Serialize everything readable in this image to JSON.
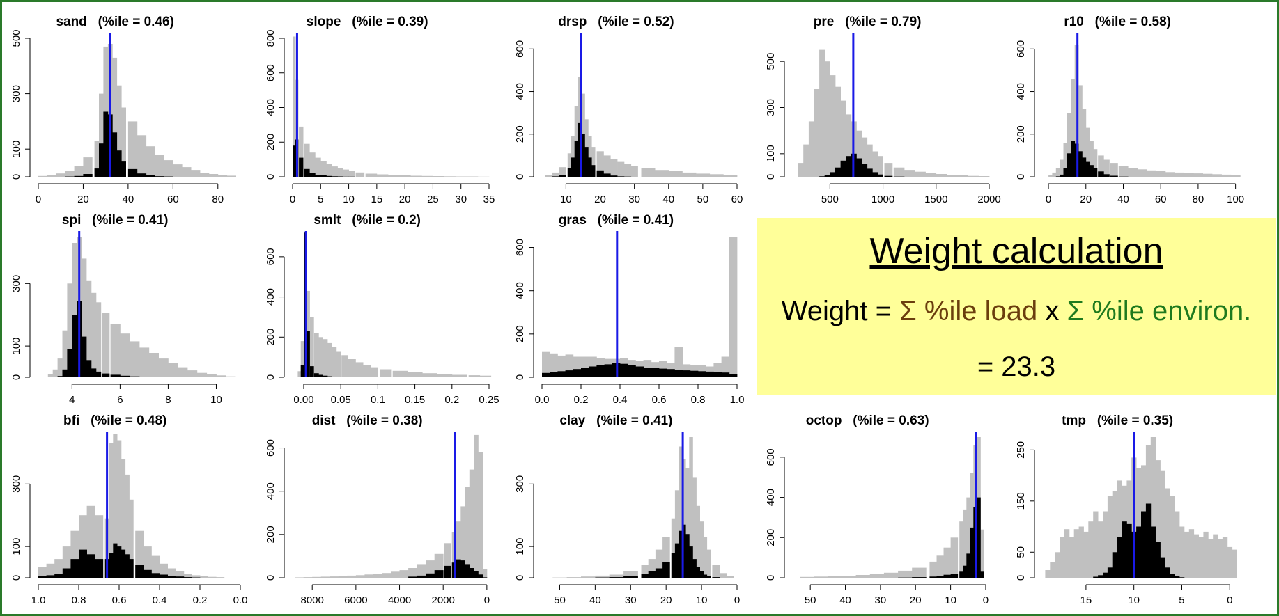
{
  "panel": {
    "title": "Weight calculation",
    "formula_prefix": "Weight = ",
    "formula_load": "Σ %ile load",
    "formula_mid": " x ",
    "formula_env": "Σ %ile environ.",
    "result": "= 23.3",
    "colors": {
      "background": "#ffff99",
      "load": "#6b3e0e",
      "environ": "#1e7a1e"
    }
  },
  "colors": {
    "background_hist": "#c0c0c0",
    "selected_hist": "#000000",
    "marker": "#1a1ae6",
    "frame": "#2a7a2a"
  },
  "chart_data": [
    {
      "type": "bar",
      "title": "sand   (%ile = 0.46)",
      "xlim": [
        0,
        90
      ],
      "ylim": [
        0,
        500
      ],
      "xticks": [
        0,
        20,
        40,
        60,
        80
      ],
      "yticks": [
        0,
        100,
        300,
        500
      ],
      "marker": 32,
      "x": [
        2,
        6,
        10,
        14,
        18,
        22,
        26,
        28,
        30,
        32,
        34,
        36,
        38,
        42,
        46,
        50,
        54,
        58,
        62,
        66,
        70,
        74,
        78,
        82,
        86
      ],
      "bg": [
        3,
        6,
        12,
        22,
        40,
        70,
        130,
        300,
        470,
        480,
        430,
        330,
        250,
        200,
        150,
        110,
        80,
        60,
        45,
        35,
        25,
        15,
        10,
        6,
        4
      ],
      "fg": [
        0,
        0,
        0,
        1,
        3,
        10,
        30,
        120,
        235,
        225,
        160,
        95,
        55,
        28,
        12,
        5,
        2,
        1,
        0,
        0,
        0,
        0,
        0,
        0,
        0
      ]
    },
    {
      "type": "bar",
      "title": "slope   (%ile = 0.39)",
      "xlim": [
        0,
        35
      ],
      "ylim": [
        0,
        800
      ],
      "xticks": [
        0,
        5,
        10,
        15,
        20,
        25,
        30,
        35
      ],
      "yticks": [
        0,
        200,
        400,
        600,
        800
      ],
      "marker": 0.8,
      "x": [
        0.25,
        0.75,
        1.5,
        2.5,
        3.5,
        4.5,
        5.5,
        6.5,
        7.5,
        8.5,
        9.5,
        10.5,
        12,
        14,
        16,
        18,
        20,
        22,
        24,
        26,
        28,
        30,
        32,
        34
      ],
      "bg": [
        810,
        560,
        290,
        190,
        140,
        110,
        90,
        75,
        60,
        50,
        42,
        35,
        25,
        18,
        14,
        10,
        8,
        6,
        5,
        4,
        3,
        2,
        2,
        1
      ],
      "fg": [
        180,
        215,
        110,
        45,
        20,
        12,
        8,
        5,
        3,
        2,
        1,
        1,
        0,
        0,
        0,
        0,
        0,
        0,
        0,
        0,
        0,
        0,
        0,
        0
      ]
    },
    {
      "type": "bar",
      "title": "drsp   (%ile = 0.52)",
      "xlim": [
        3,
        60
      ],
      "ylim": [
        0,
        650
      ],
      "xticks": [
        10,
        20,
        30,
        40,
        50,
        60
      ],
      "yticks": [
        0,
        200,
        400,
        600
      ],
      "marker": 14.5,
      "x": [
        5,
        7,
        9,
        11,
        12,
        13,
        14,
        15,
        16,
        17,
        18,
        20,
        22,
        24,
        26,
        28,
        30,
        34,
        38,
        42,
        46,
        50,
        54,
        58
      ],
      "bg": [
        8,
        20,
        45,
        110,
        190,
        330,
        470,
        390,
        270,
        190,
        140,
        120,
        100,
        85,
        70,
        60,
        50,
        40,
        32,
        26,
        20,
        15,
        12,
        8
      ],
      "fg": [
        0,
        2,
        8,
        40,
        90,
        170,
        255,
        200,
        140,
        90,
        55,
        30,
        15,
        6,
        2,
        1,
        0,
        0,
        0,
        0,
        0,
        0,
        0,
        0
      ]
    },
    {
      "type": "bar",
      "title": "pre   (%ile = 0.79)",
      "xlim": [
        150,
        2000
      ],
      "ylim": [
        0,
        600
      ],
      "xticks": [
        500,
        1000,
        1500,
        2000
      ],
      "yticks": [
        0,
        100,
        300,
        500
      ],
      "marker": 720,
      "x": [
        225,
        275,
        325,
        375,
        425,
        475,
        525,
        575,
        625,
        675,
        725,
        775,
        825,
        875,
        925,
        975,
        1050,
        1150,
        1250,
        1350,
        1450,
        1550,
        1650,
        1750,
        1850,
        1950
      ],
      "bg": [
        60,
        140,
        240,
        380,
        550,
        500,
        440,
        390,
        330,
        270,
        240,
        200,
        170,
        140,
        110,
        90,
        60,
        40,
        30,
        22,
        16,
        12,
        9,
        6,
        4,
        3
      ],
      "fg": [
        0,
        0,
        0,
        0,
        2,
        8,
        20,
        40,
        70,
        90,
        100,
        80,
        55,
        35,
        20,
        10,
        4,
        1,
        0,
        0,
        0,
        0,
        0,
        0,
        0,
        0
      ]
    },
    {
      "type": "bar",
      "title": "r10   (%ile = 0.58)",
      "xlim": [
        -3,
        102
      ],
      "ylim": [
        0,
        650
      ],
      "xticks": [
        0,
        20,
        40,
        60,
        80,
        100
      ],
      "yticks": [
        0,
        200,
        400,
        600
      ],
      "marker": 15.5,
      "x": [
        1,
        3,
        5,
        7,
        9,
        11,
        13,
        15,
        17,
        19,
        21,
        23,
        25,
        28,
        31,
        35,
        40,
        45,
        50,
        55,
        60,
        65,
        70,
        75,
        80,
        85,
        90,
        95,
        100
      ],
      "bg": [
        8,
        20,
        40,
        80,
        160,
        300,
        460,
        620,
        430,
        320,
        230,
        170,
        130,
        100,
        80,
        65,
        52,
        42,
        35,
        30,
        26,
        22,
        20,
        18,
        16,
        14,
        12,
        10,
        8
      ],
      "fg": [
        0,
        0,
        2,
        10,
        40,
        110,
        170,
        155,
        120,
        90,
        70,
        55,
        40,
        25,
        12,
        5,
        1,
        0,
        0,
        0,
        0,
        0,
        0,
        0,
        0,
        0,
        0,
        0,
        0
      ]
    },
    {
      "type": "bar",
      "title": "spi   (%ile = 0.41)",
      "xlim": [
        2.6,
        11
      ],
      "ylim": [
        0,
        450
      ],
      "xticks": [
        4,
        6,
        8,
        10
      ],
      "yticks": [
        0,
        100,
        300
      ],
      "marker": 4.3,
      "x": [
        3.1,
        3.3,
        3.5,
        3.7,
        3.9,
        4.1,
        4.3,
        4.5,
        4.7,
        4.9,
        5.1,
        5.4,
        5.8,
        6.2,
        6.6,
        7.0,
        7.4,
        7.8,
        8.2,
        8.6,
        9.0,
        9.4,
        9.8,
        10.2,
        10.6
      ],
      "bg": [
        10,
        25,
        60,
        150,
        300,
        430,
        450,
        380,
        310,
        270,
        240,
        205,
        170,
        140,
        115,
        95,
        78,
        60,
        45,
        32,
        22,
        14,
        9,
        6,
        3
      ],
      "fg": [
        0,
        1,
        4,
        25,
        90,
        200,
        245,
        130,
        55,
        28,
        18,
        12,
        8,
        5,
        3,
        2,
        1,
        0,
        0,
        0,
        0,
        0,
        0,
        0,
        0
      ]
    },
    {
      "type": "bar",
      "title": "smlt   (%ile = 0.2)",
      "xlim": [
        -0.015,
        0.25
      ],
      "ylim": [
        0,
        700
      ],
      "xticks": [
        0.0,
        0.05,
        0.1,
        0.15,
        0.2,
        0.25
      ],
      "yticks": [
        0,
        200,
        400,
        600
      ],
      "marker": 0.003,
      "x": [
        -0.006,
        -0.002,
        0.002,
        0.006,
        0.011,
        0.017,
        0.023,
        0.029,
        0.035,
        0.041,
        0.047,
        0.055,
        0.065,
        0.075,
        0.085,
        0.095,
        0.11,
        0.13,
        0.15,
        0.17,
        0.19,
        0.21,
        0.23,
        0.245
      ],
      "bg": [
        30,
        180,
        680,
        430,
        300,
        220,
        200,
        190,
        170,
        150,
        130,
        110,
        90,
        75,
        62,
        50,
        40,
        32,
        25,
        20,
        15,
        12,
        10,
        8
      ],
      "fg": [
        2,
        60,
        720,
        230,
        55,
        20,
        12,
        8,
        5,
        3,
        2,
        1,
        0,
        0,
        0,
        0,
        0,
        0,
        0,
        0,
        0,
        0,
        0,
        0
      ]
    },
    {
      "type": "bar",
      "title": "gras   (%ile = 0.41)",
      "xlim": [
        0,
        1
      ],
      "ylim": [
        0,
        650
      ],
      "xticks": [
        0.0,
        0.2,
        0.4,
        0.6,
        0.8,
        1.0
      ],
      "yticks": [
        0,
        200,
        400,
        600
      ],
      "marker": 0.385,
      "x": [
        0.02,
        0.06,
        0.1,
        0.14,
        0.18,
        0.22,
        0.26,
        0.3,
        0.34,
        0.38,
        0.42,
        0.46,
        0.5,
        0.54,
        0.58,
        0.62,
        0.66,
        0.7,
        0.74,
        0.78,
        0.82,
        0.86,
        0.9,
        0.94,
        0.98
      ],
      "bg": [
        120,
        110,
        100,
        105,
        95,
        95,
        95,
        90,
        85,
        85,
        90,
        80,
        75,
        80,
        70,
        75,
        65,
        140,
        60,
        55,
        55,
        50,
        65,
        95,
        650
      ],
      "fg": [
        20,
        25,
        28,
        32,
        38,
        45,
        50,
        55,
        60,
        65,
        62,
        55,
        50,
        45,
        42,
        40,
        38,
        35,
        32,
        30,
        28,
        26,
        25,
        22,
        15
      ]
    },
    {
      "type": "bar",
      "title": "bfi   (%ile = 0.48)",
      "xlim": [
        1.0,
        0.0
      ],
      "ylim": [
        0,
        450
      ],
      "xticks": [
        1.0,
        0.8,
        0.6,
        0.4,
        0.2,
        0.0
      ],
      "yticks": [
        0,
        100,
        300
      ],
      "marker": 0.66,
      "x": [
        0.98,
        0.94,
        0.9,
        0.86,
        0.82,
        0.78,
        0.74,
        0.7,
        0.66,
        0.64,
        0.62,
        0.6,
        0.58,
        0.56,
        0.54,
        0.5,
        0.46,
        0.42,
        0.38,
        0.34,
        0.3,
        0.26,
        0.22,
        0.18,
        0.14,
        0.1
      ],
      "bg": [
        35,
        45,
        60,
        100,
        150,
        200,
        230,
        200,
        190,
        430,
        460,
        440,
        380,
        330,
        250,
        150,
        100,
        70,
        45,
        30,
        20,
        12,
        8,
        5,
        3,
        2
      ],
      "fg": [
        5,
        8,
        12,
        30,
        60,
        90,
        75,
        60,
        60,
        80,
        110,
        100,
        90,
        75,
        60,
        40,
        25,
        15,
        10,
        6,
        4,
        2,
        1,
        0,
        0,
        0
      ]
    },
    {
      "type": "bar",
      "title": "dist   (%ile = 0.38)",
      "xlim": [
        8900,
        -100
      ],
      "ylim": [
        0,
        650
      ],
      "xticks": [
        8000,
        6000,
        4000,
        2000,
        0
      ],
      "yticks": [
        0,
        200,
        400,
        600
      ],
      "marker": 1450,
      "x": [
        8600,
        8200,
        7800,
        7400,
        7000,
        6600,
        6200,
        5800,
        5400,
        5000,
        4600,
        4200,
        3800,
        3400,
        3000,
        2600,
        2200,
        1800,
        1500,
        1300,
        1100,
        900,
        700,
        500,
        300,
        100
      ],
      "bg": [
        2,
        3,
        4,
        5,
        6,
        8,
        10,
        12,
        15,
        18,
        22,
        28,
        35,
        45,
        60,
        80,
        110,
        160,
        210,
        260,
        330,
        420,
        500,
        660,
        580,
        40
      ],
      "fg": [
        0,
        0,
        0,
        0,
        0,
        0,
        0,
        0,
        0,
        0,
        0,
        0,
        0,
        5,
        10,
        20,
        35,
        55,
        70,
        85,
        80,
        60,
        45,
        30,
        15,
        2
      ]
    },
    {
      "type": "bar",
      "title": "clay   (%ile = 0.41)",
      "xlim": [
        55,
        0
      ],
      "ylim": [
        0,
        450
      ],
      "xticks": [
        50,
        40,
        30,
        20,
        10,
        0
      ],
      "yticks": [
        0,
        100,
        300
      ],
      "marker": 15.3,
      "x": [
        50,
        46,
        42,
        38,
        34,
        30,
        26,
        24,
        22,
        20,
        18,
        17,
        16,
        15,
        14,
        13,
        12,
        11,
        10,
        9,
        8,
        6,
        4,
        2
      ],
      "bg": [
        1,
        2,
        4,
        7,
        10,
        20,
        40,
        60,
        90,
        130,
        190,
        280,
        420,
        380,
        350,
        450,
        320,
        230,
        180,
        130,
        90,
        40,
        15,
        5
      ],
      "fg": [
        0,
        0,
        0,
        1,
        2,
        5,
        12,
        20,
        30,
        50,
        80,
        110,
        150,
        170,
        140,
        100,
        60,
        35,
        20,
        10,
        5,
        2,
        0,
        0
      ]
    },
    {
      "type": "bar",
      "title": "octop   (%ile = 0.63)",
      "xlim": [
        55,
        -1
      ],
      "ylim": [
        0,
        700
      ],
      "xticks": [
        50,
        40,
        30,
        20,
        10,
        0
      ],
      "yticks": [
        0,
        200,
        400,
        600
      ],
      "marker": 2.8,
      "x": [
        51,
        47,
        43,
        39,
        35,
        31,
        27,
        23,
        19,
        15,
        13,
        11,
        9,
        7,
        6,
        5,
        4,
        3,
        2,
        1
      ],
      "bg": [
        4,
        6,
        8,
        10,
        14,
        18,
        25,
        35,
        50,
        80,
        110,
        150,
        200,
        280,
        340,
        400,
        520,
        660,
        700,
        240
      ],
      "fg": [
        0,
        0,
        0,
        0,
        0,
        0,
        0,
        1,
        3,
        6,
        10,
        15,
        20,
        30,
        60,
        120,
        250,
        350,
        400,
        30
      ]
    },
    {
      "type": "bar",
      "title": "tmp   (%ile = 0.35)",
      "xlim": [
        19.5,
        -1
      ],
      "ylim": [
        0,
        275
      ],
      "xticks": [
        15,
        10,
        5,
        0
      ],
      "yticks": [
        0,
        50,
        150,
        250
      ],
      "marker": 10,
      "x": [
        19,
        18.5,
        18,
        17.5,
        17,
        16.5,
        16,
        15.5,
        15,
        14.5,
        14,
        13.5,
        13,
        12.5,
        12,
        11.5,
        11,
        10.5,
        10,
        9.5,
        9,
        8.5,
        8,
        7.5,
        7,
        6.5,
        6,
        5.5,
        5,
        4.5,
        4,
        3.5,
        3,
        2.5,
        2,
        1.5,
        1,
        0.5,
        0,
        -0.5
      ],
      "bg": [
        15,
        30,
        50,
        80,
        95,
        80,
        95,
        100,
        90,
        110,
        130,
        110,
        130,
        160,
        170,
        190,
        180,
        190,
        235,
        215,
        220,
        260,
        275,
        230,
        210,
        175,
        160,
        130,
        100,
        90,
        95,
        85,
        80,
        90,
        75,
        85,
        75,
        80,
        60,
        55
      ],
      "fg": [
        0,
        0,
        0,
        0,
        0,
        0,
        0,
        0,
        0,
        0,
        2,
        5,
        10,
        20,
        50,
        80,
        110,
        105,
        90,
        100,
        130,
        145,
        100,
        70,
        40,
        20,
        8,
        3,
        1,
        0,
        0,
        0,
        0,
        0,
        0,
        0,
        0,
        0,
        0,
        0
      ]
    }
  ]
}
